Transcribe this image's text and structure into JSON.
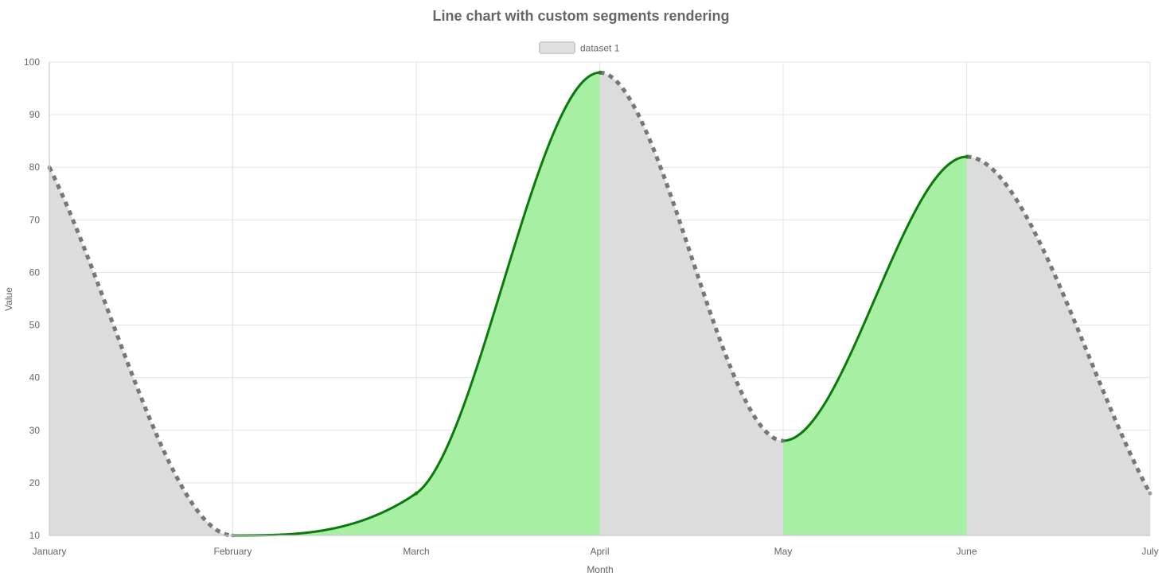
{
  "chart_data": {
    "type": "line",
    "title": "Line chart with custom segments rendering",
    "xlabel": "Month",
    "ylabel": "Value",
    "categories": [
      "January",
      "February",
      "March",
      "April",
      "May",
      "June",
      "July"
    ],
    "ylim": [
      10,
      100
    ],
    "yticks": [
      "10",
      "20",
      "30",
      "40",
      "50",
      "60",
      "70",
      "80",
      "90",
      "100"
    ],
    "grid": true,
    "legend_position": "top",
    "series": [
      {
        "name": "dataset 1",
        "values": [
          80,
          10,
          18,
          98,
          28,
          82,
          18
        ],
        "fill": true,
        "segment_rendering": "rising segments solid green with green fill; falling segments dashed gray with gray fill"
      }
    ],
    "colors": {
      "rising_line": "#0b7a0b",
      "rising_fill": "#a6efa3",
      "falling_line": "#777777",
      "falling_fill": "#dcdcdc",
      "legend_fill": "#e0e0e0",
      "legend_border": "#cccccc",
      "grid": "#e3e3e3",
      "axis": "#c9c9c9",
      "text": "#666666"
    }
  }
}
